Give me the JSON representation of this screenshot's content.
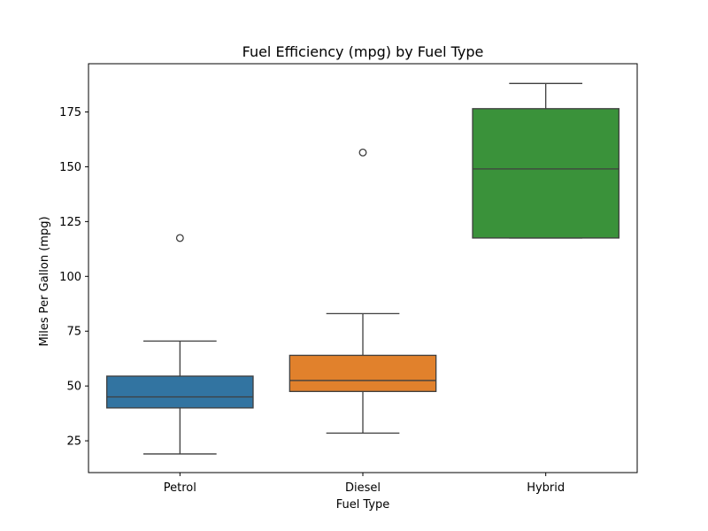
{
  "chart_data": {
    "type": "box",
    "title": "Fuel Efficiency (mpg) by Fuel Type",
    "xlabel": "Fuel Type",
    "ylabel": "Miles Per Gallon (mpg)",
    "ylim": [
      10.5,
      197
    ],
    "yticks": [
      25,
      50,
      75,
      100,
      125,
      150,
      175
    ],
    "grid": false,
    "categories": [
      "Petrol",
      "Diesel",
      "Hybrid"
    ],
    "boxes": [
      {
        "name": "Petrol",
        "color": "#3274a1",
        "whisker_low": 19,
        "q1": 40,
        "median": 45,
        "q3": 54.5,
        "whisker_high": 70.5,
        "outliers": [
          117.5
        ]
      },
      {
        "name": "Diesel",
        "color": "#e1812c",
        "whisker_low": 28.5,
        "q1": 47.5,
        "median": 52.5,
        "q3": 64,
        "whisker_high": 83,
        "outliers": [
          156.5
        ]
      },
      {
        "name": "Hybrid",
        "color": "#3a923a",
        "whisker_low": 117.5,
        "q1": 117.5,
        "median": 149,
        "q3": 176.5,
        "whisker_high": 188,
        "outliers": []
      }
    ]
  }
}
